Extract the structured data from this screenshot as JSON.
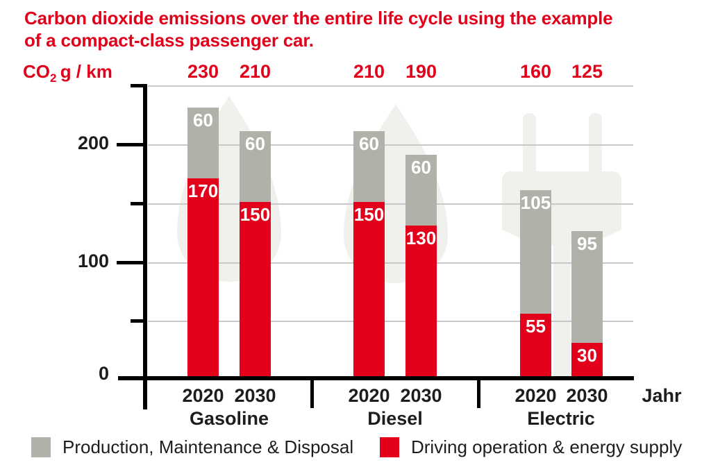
{
  "title": {
    "line1": "Carbon dioxide emissions over the entire life cycle using the example",
    "line2": "of a compact-class passenger car."
  },
  "unit_label": {
    "prefix": "CO",
    "subscript": "2",
    "suffix": "g / km"
  },
  "x_axis_label": "Jahr",
  "legend": {
    "items": [
      {
        "label": "Production, Maintenance & Disposal",
        "color": "#b1b1a9"
      },
      {
        "label": "Driving operation & energy supply",
        "color": "#e2001a"
      }
    ]
  },
  "colors": {
    "accent_red": "#e2001a",
    "bar_gray": "#b1b1a9",
    "text_dark": "#1d1d1b",
    "axis_black": "#000000",
    "gridline_gray": "#c8c8c8",
    "watermark_gray": "#f0f0ed"
  },
  "chart_data": {
    "type": "bar",
    "stacked": true,
    "title": "Carbon dioxide emissions over the entire life cycle using the example of a compact-class passenger car.",
    "ylabel": "CO2 g/km",
    "xlabel": "Jahr",
    "ylim": [
      0,
      250
    ],
    "yticks_labeled": [
      0,
      100,
      200
    ],
    "yticks_minor": [
      50,
      150,
      250
    ],
    "grid": true,
    "legend_position": "bottom",
    "series_names": [
      "Driving operation & energy supply",
      "Production, Maintenance & Disposal"
    ],
    "groups": [
      {
        "label": "Gasoline",
        "watermark": "fuel-drop"
      },
      {
        "label": "Diesel",
        "watermark": "fuel-drop"
      },
      {
        "label": "Electric",
        "watermark": "power-plug"
      }
    ],
    "bars": [
      {
        "group": "Gasoline",
        "year": "2020",
        "driving_operation": 170,
        "production_maintenance_disposal": 60,
        "total": 230
      },
      {
        "group": "Gasoline",
        "year": "2030",
        "driving_operation": 150,
        "production_maintenance_disposal": 60,
        "total": 210
      },
      {
        "group": "Diesel",
        "year": "2020",
        "driving_operation": 150,
        "production_maintenance_disposal": 60,
        "total": 210
      },
      {
        "group": "Diesel",
        "year": "2030",
        "driving_operation": 130,
        "production_maintenance_disposal": 60,
        "total": 190
      },
      {
        "group": "Electric",
        "year": "2020",
        "driving_operation": 55,
        "production_maintenance_disposal": 105,
        "total": 160
      },
      {
        "group": "Electric",
        "year": "2030",
        "driving_operation": 30,
        "production_maintenance_disposal": 95,
        "total": 125
      }
    ]
  }
}
